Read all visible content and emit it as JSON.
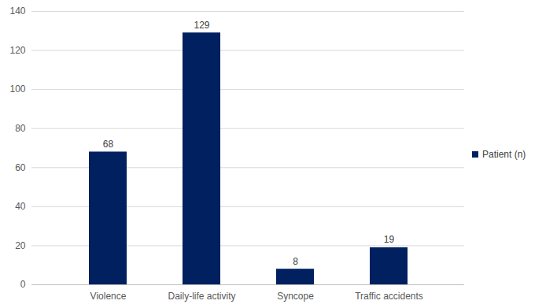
{
  "chart_data": {
    "type": "bar",
    "categories": [
      "Violence",
      "Daily-life activity",
      "Syncope",
      "Traffic accidents"
    ],
    "series": [
      {
        "name": "Patient (n)",
        "color": "#002060",
        "values": [
          68,
          129,
          8,
          19
        ]
      }
    ],
    "ylim": [
      0,
      140
    ],
    "yticks": [
      0,
      20,
      40,
      60,
      80,
      100,
      120,
      140
    ],
    "grid": true,
    "data_labels": true,
    "legend": "right"
  }
}
